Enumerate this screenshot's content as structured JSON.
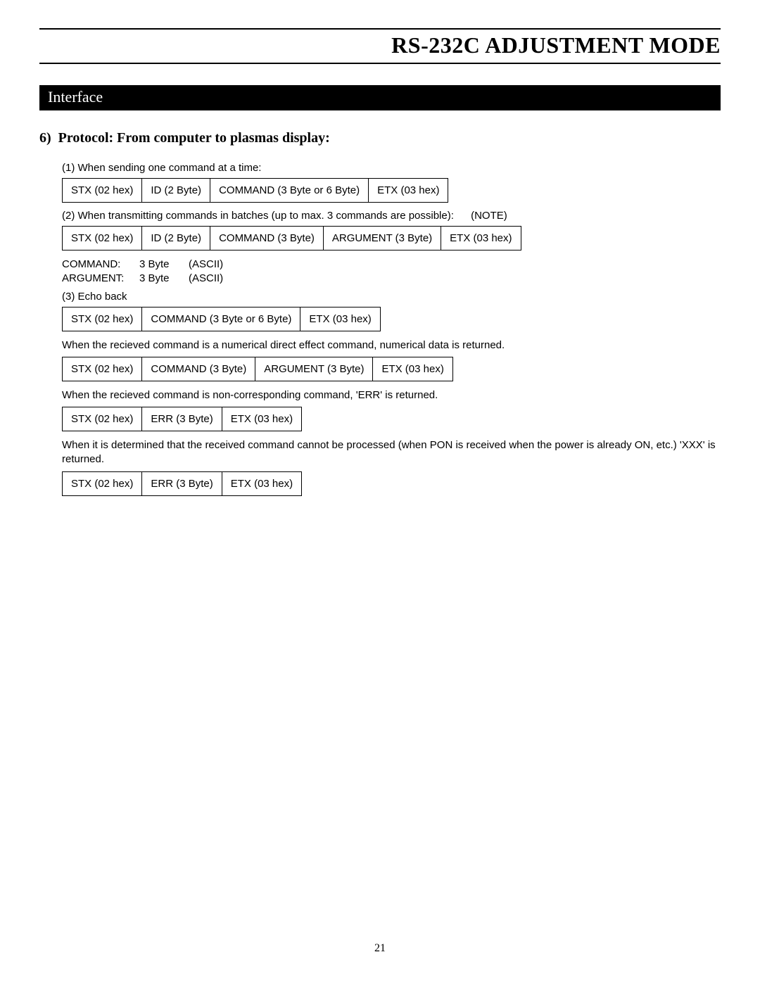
{
  "header": {
    "title": "RS-232C ADJUSTMENT MODE"
  },
  "section_bar": "Interface",
  "subsection": {
    "number": "6)",
    "title": "Protocol: From computer to plasmas display:"
  },
  "labels": {
    "p1": "(1) When sending one command at a time:",
    "p2": "(2) When transmitting commands in batches (up to max. 3 commands are possible):",
    "p2_note": "(NOTE)",
    "p3": "(3) Echo back",
    "explain_numeric": "When the recieved command is a numerical direct effect command, numerical data is returned.",
    "explain_err": "When the recieved command is non-corresponding command, 'ERR' is returned.",
    "explain_xxx": "When it is determined that the received command cannot be processed (when PON is received when the power is already ON, etc.) 'XXX' is returned."
  },
  "defs": {
    "cmd_key": "COMMAND:",
    "cmd_bytes": "3 Byte",
    "cmd_enc": "(ASCII)",
    "arg_key": "ARGUMENT:",
    "arg_bytes": "3 Byte",
    "arg_enc": "(ASCII)"
  },
  "cells": {
    "stx": "STX (02 hex)",
    "id": "ID (2 Byte)",
    "cmd36": "COMMAND (3 Byte or 6 Byte)",
    "cmd3": "COMMAND (3 Byte)",
    "arg3": "ARGUMENT (3 Byte)",
    "etx": "ETX (03 hex)",
    "err": "ERR (3 Byte)"
  },
  "packets": {
    "row1": [
      "stx",
      "id",
      "cmd36",
      "etx"
    ],
    "row2": [
      "stx",
      "id",
      "cmd3",
      "arg3",
      "etx"
    ],
    "row3": [
      "stx",
      "cmd36",
      "etx"
    ],
    "row4": [
      "stx",
      "cmd3",
      "arg3",
      "etx"
    ],
    "row5": [
      "stx",
      "err",
      "etx"
    ],
    "row6": [
      "stx",
      "err",
      "etx"
    ]
  },
  "page_number": "21",
  "colors": {
    "bg": "#ffffff",
    "text": "#000000",
    "bar_bg": "#000000",
    "bar_fg": "#ffffff",
    "border": "#000000"
  }
}
